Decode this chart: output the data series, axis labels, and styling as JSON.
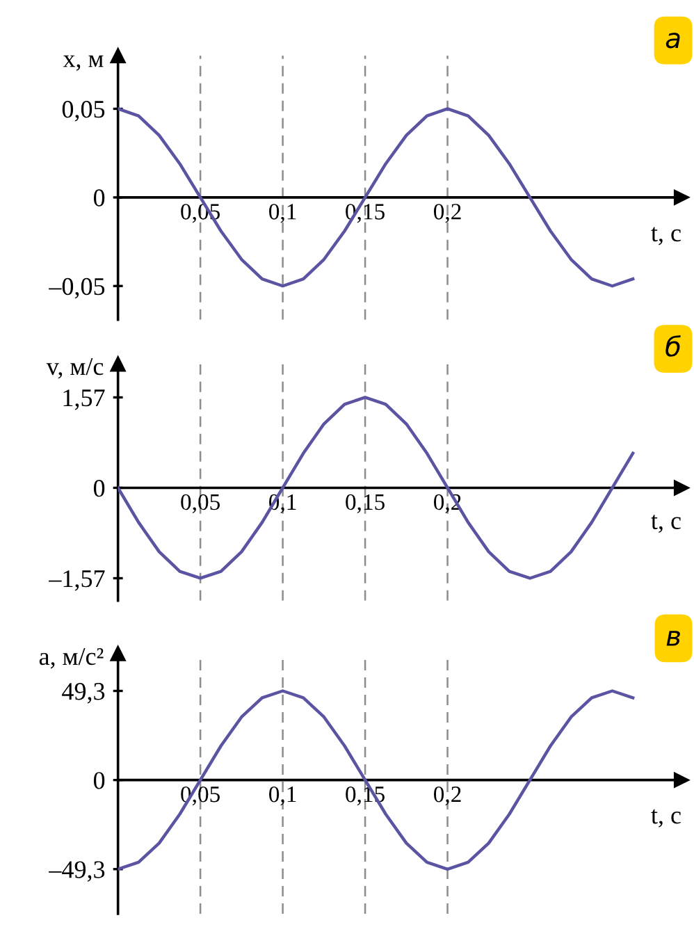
{
  "chart_data": [
    {
      "type": "line",
      "title": "а",
      "ylabel": "x, м",
      "xlabel": "t, с",
      "x": [
        0,
        0.0125,
        0.025,
        0.0375,
        0.05,
        0.0625,
        0.075,
        0.0875,
        0.1,
        0.1125,
        0.125,
        0.1375,
        0.15,
        0.1625,
        0.175,
        0.1875,
        0.2,
        0.2125,
        0.225,
        0.2375,
        0.25,
        0.2625,
        0.275,
        0.2875,
        0.3,
        0.3125
      ],
      "series": [
        {
          "color": "#5a54a3",
          "values": [
            0.05,
            0.046,
            0.035,
            0.019,
            0,
            -0.019,
            -0.035,
            -0.046,
            -0.05,
            -0.046,
            -0.035,
            -0.019,
            0,
            0.019,
            0.035,
            0.046,
            0.05,
            0.046,
            0.035,
            0.019,
            0,
            -0.019,
            -0.035,
            -0.046,
            -0.05,
            -0.046
          ]
        }
      ],
      "xlim": [
        0,
        0.342
      ],
      "ylim": [
        -0.069,
        0.08
      ],
      "xticks": [
        {
          "value": 0.05,
          "label": "0,05"
        },
        {
          "value": 0.1,
          "label": "0,1"
        },
        {
          "value": 0.15,
          "label": "0,15"
        },
        {
          "value": 0.2,
          "label": "0,2"
        }
      ],
      "yticks": [
        {
          "value": -0.05,
          "label": "–0,05"
        },
        0,
        {
          "value": 0.05,
          "label": "0,05"
        }
      ],
      "ref_lines": [
        {
          "axis": "x",
          "value": 0.05,
          "color": "#8c8c8c",
          "line_style": "dashed"
        },
        {
          "axis": "x",
          "value": 0.1,
          "color": "#8c8c8c",
          "line_style": "dashed"
        },
        {
          "axis": "x",
          "value": 0.15,
          "color": "#8c8c8c",
          "line_style": "dashed"
        },
        {
          "axis": "x",
          "value": 0.2,
          "color": "#8c8c8c",
          "line_style": "dashed"
        }
      ],
      "grid": false,
      "line_style": "solid",
      "marker": "none"
    },
    {
      "type": "line",
      "title": "б",
      "ylabel": "v, м/с",
      "xlabel": "t, с",
      "x": [
        0,
        0.0125,
        0.025,
        0.0375,
        0.05,
        0.0625,
        0.075,
        0.0875,
        0.1,
        0.1125,
        0.125,
        0.1375,
        0.15,
        0.1625,
        0.175,
        0.1875,
        0.2,
        0.2125,
        0.225,
        0.2375,
        0.25,
        0.2625,
        0.275,
        0.2875,
        0.3,
        0.3125
      ],
      "series": [
        {
          "color": "#5a54a3",
          "values": [
            0,
            -0.6,
            -1.11,
            -1.45,
            -1.57,
            -1.45,
            -1.11,
            -0.6,
            0,
            0.6,
            1.11,
            1.45,
            1.57,
            1.45,
            1.11,
            0.6,
            0,
            -0.6,
            -1.11,
            -1.45,
            -1.57,
            -1.45,
            -1.11,
            -0.6,
            0,
            0.6
          ]
        }
      ],
      "xlim": [
        0,
        0.342
      ],
      "ylim": [
        -1.96,
        2.15
      ],
      "xticks": [
        {
          "value": 0.05,
          "label": "0,05"
        },
        {
          "value": 0.1,
          "label": "0,1"
        },
        {
          "value": 0.15,
          "label": "0,15"
        },
        {
          "value": 0.2,
          "label": "0,2"
        }
      ],
      "yticks": [
        {
          "value": -1.57,
          "label": "–1,57"
        },
        0,
        {
          "value": 1.57,
          "label": "1,57"
        }
      ],
      "ref_lines": [
        {
          "axis": "x",
          "value": 0.05,
          "color": "#8c8c8c",
          "line_style": "dashed"
        },
        {
          "axis": "x",
          "value": 0.1,
          "color": "#8c8c8c",
          "line_style": "dashed"
        },
        {
          "axis": "x",
          "value": 0.15,
          "color": "#8c8c8c",
          "line_style": "dashed"
        },
        {
          "axis": "x",
          "value": 0.2,
          "color": "#8c8c8c",
          "line_style": "dashed"
        }
      ],
      "grid": false,
      "line_style": "solid",
      "marker": "none"
    },
    {
      "type": "line",
      "title": "в",
      "ylabel": "a, м/с²",
      "xlabel": "t, с",
      "x": [
        0,
        0.0125,
        0.025,
        0.0375,
        0.05,
        0.0625,
        0.075,
        0.0875,
        0.1,
        0.1125,
        0.125,
        0.1375,
        0.15,
        0.1625,
        0.175,
        0.1875,
        0.2,
        0.2125,
        0.225,
        0.2375,
        0.25,
        0.2625,
        0.275,
        0.2875,
        0.3,
        0.3125
      ],
      "series": [
        {
          "color": "#5a54a3",
          "values": [
            -49.3,
            -45.5,
            -34.9,
            -18.9,
            0,
            18.9,
            34.9,
            45.5,
            49.3,
            45.5,
            34.9,
            18.9,
            0,
            -18.9,
            -34.9,
            -45.5,
            -49.3,
            -45.5,
            -34.9,
            -18.9,
            0,
            18.9,
            34.9,
            45.5,
            49.3,
            45.5
          ]
        }
      ],
      "xlim": [
        0,
        0.342
      ],
      "ylim": [
        -74,
        70
      ],
      "xticks": [
        {
          "value": 0.05,
          "label": "0,05"
        },
        {
          "value": 0.1,
          "label": "0,1"
        },
        {
          "value": 0.15,
          "label": "0,15"
        },
        {
          "value": 0.2,
          "label": "0,2"
        }
      ],
      "yticks": [
        {
          "value": -49.3,
          "label": "–49,3"
        },
        0,
        {
          "value": 49.3,
          "label": "49,3"
        }
      ],
      "ref_lines": [
        {
          "axis": "x",
          "value": 0.05,
          "color": "#8c8c8c",
          "line_style": "dashed"
        },
        {
          "axis": "x",
          "value": 0.1,
          "color": "#8c8c8c",
          "line_style": "dashed"
        },
        {
          "axis": "x",
          "value": 0.15,
          "color": "#8c8c8c",
          "line_style": "dashed"
        },
        {
          "axis": "x",
          "value": 0.2,
          "color": "#8c8c8c",
          "line_style": "dashed"
        }
      ],
      "grid": false,
      "line_style": "solid",
      "marker": "none"
    }
  ]
}
